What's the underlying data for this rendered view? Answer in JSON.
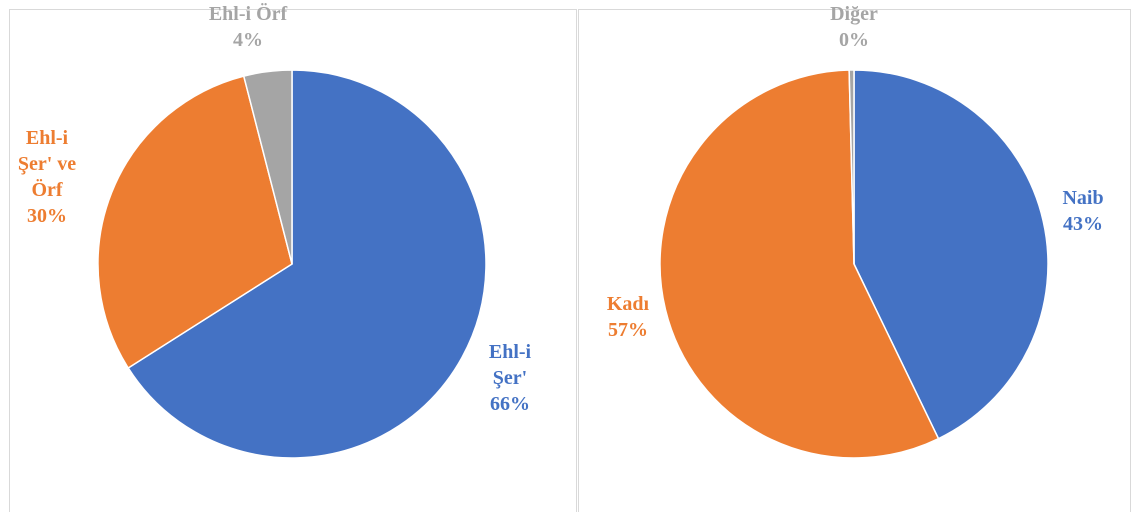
{
  "chart_data": [
    {
      "type": "pie",
      "title": "",
      "slices": [
        {
          "label_lines": [
            "Ehl-i",
            "Şer'"
          ],
          "percent_label": "66%",
          "value": 66,
          "color": "#4472C4"
        },
        {
          "label_lines": [
            "Ehl-i",
            "Şer' ve",
            "Örf"
          ],
          "percent_label": "30%",
          "value": 30,
          "color": "#ED7D31"
        },
        {
          "label_lines": [
            "Ehl-i Örf"
          ],
          "percent_label": "4%",
          "value": 4,
          "color": "#A5A5A5"
        }
      ]
    },
    {
      "type": "pie",
      "title": "",
      "slices": [
        {
          "label_lines": [
            "Naib"
          ],
          "percent_label": "43%",
          "value": 43,
          "color": "#4472C4"
        },
        {
          "label_lines": [
            "Kadı"
          ],
          "percent_label": "57%",
          "value": 57,
          "color": "#ED7D31"
        },
        {
          "label_lines": [
            "Diğer"
          ],
          "percent_label": "0%",
          "value": 0.4,
          "color": "#A5A5A5"
        }
      ]
    }
  ]
}
